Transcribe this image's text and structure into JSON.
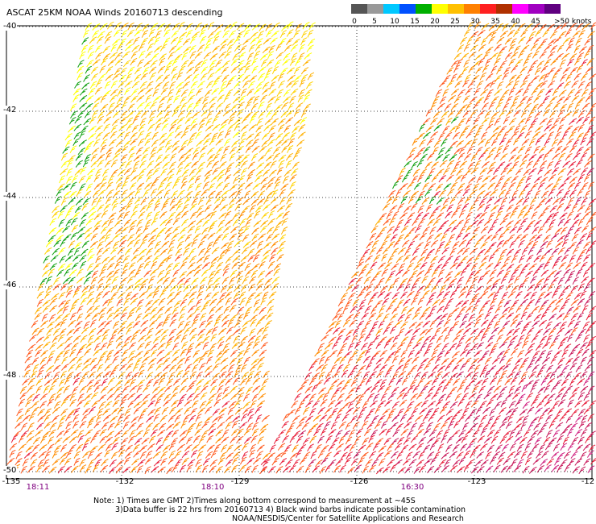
{
  "title": "ASCAT 25KM NOAA Winds 20160713 descending",
  "legend": {
    "units": ">50 knots",
    "ticks": [
      "0",
      "5",
      "10",
      "15",
      "20",
      "25",
      "30",
      "35",
      "40",
      "45"
    ],
    "colors": [
      "#555555",
      "#999999",
      "#00c8ff",
      "#0050ff",
      "#00b000",
      "#ffff00",
      "#ffc000",
      "#ff8000",
      "#ff2020",
      "#b03000",
      "#ff00ff",
      "#a000c0",
      "#600080"
    ]
  },
  "lat_labels": [
    "-40",
    "-42",
    "-44",
    "-46",
    "-48",
    "-50"
  ],
  "lon_labels": [
    "-135",
    "-132",
    "-129",
    "-126",
    "-123",
    "-12"
  ],
  "times": [
    "18:11",
    "18:10",
    "16:30"
  ],
  "notes": {
    "line1": "Note: 1) Times are GMT 2)Times along bottom correspond to measurement at ~45S",
    "line2": "3)Data buffer is 22 hrs from 20160713 4) Black wind barbs indicate possible contamination",
    "line3": "NOAA/NESDIS/Center for Satellite Applications and Research"
  }
}
